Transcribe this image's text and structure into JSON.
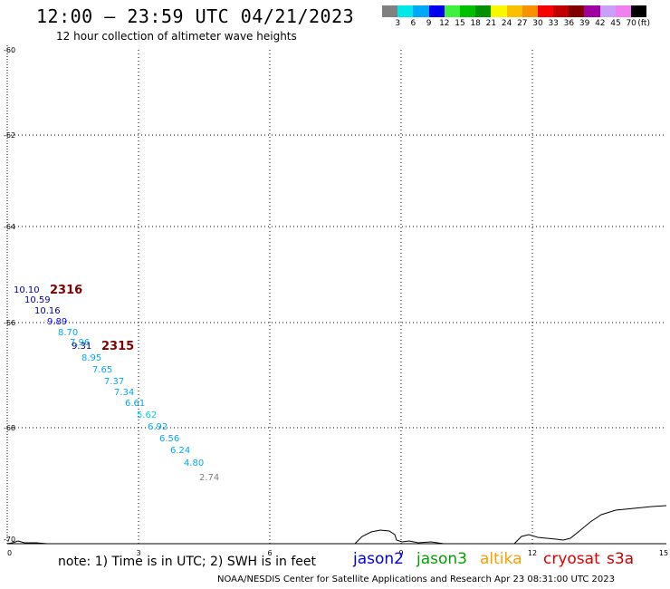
{
  "header": {
    "title": "12:00 – 23:59 UTC 04/21/2023",
    "subtitle": "12 hour collection of altimeter wave heights"
  },
  "legend": {
    "colors": [
      "#808080",
      "#00e8e8",
      "#00a8f8",
      "#0000f0",
      "#40f040",
      "#00c000",
      "#009000",
      "#f8f800",
      "#f8c000",
      "#f89000",
      "#f80000",
      "#c00000",
      "#800000",
      "#a000a0",
      "#c8a0f8",
      "#f080f0",
      "#000000"
    ],
    "labels": [
      "3",
      "6",
      "9",
      "12",
      "15",
      "18",
      "21",
      "24",
      "27",
      "30",
      "33",
      "36",
      "39",
      "42",
      "45",
      "70"
    ],
    "unit": "(ft)"
  },
  "map": {
    "y_labels": [
      "-60",
      "-62",
      "-64",
      "-66",
      "-68",
      "-70"
    ],
    "x_labels": [
      "0",
      "3",
      "6",
      "9",
      "12",
      "15"
    ],
    "pass_labels": [
      {
        "text": "2316",
        "color": "#800000"
      },
      {
        "text": "2315",
        "color": "#800000"
      }
    ],
    "readings": [
      {
        "text": "10.10",
        "color": "#0000a0"
      },
      {
        "text": "10.59",
        "color": "#0000a0"
      },
      {
        "text": "10.16",
        "color": "#0000a0"
      },
      {
        "text": "9.89",
        "color": "#0000f0"
      },
      {
        "text": "8.70",
        "color": "#00a8f8"
      },
      {
        "text": "7.96",
        "color": "#00a8f8"
      },
      {
        "text": "9.31",
        "color": "#000080"
      },
      {
        "text": "8.95",
        "color": "#00a8f8"
      },
      {
        "text": "7.65",
        "color": "#00a8f8"
      },
      {
        "text": "7.37",
        "color": "#00a8f8"
      },
      {
        "text": "7.34",
        "color": "#00a8f8"
      },
      {
        "text": "6.61",
        "color": "#00a8f8"
      },
      {
        "text": "5.62",
        "color": "#00d0e8"
      },
      {
        "text": "6.92",
        "color": "#00a8f8"
      },
      {
        "text": "6.56",
        "color": "#00a8f8"
      },
      {
        "text": "6.24",
        "color": "#00a8f8"
      },
      {
        "text": "4.80",
        "color": "#00a8f8"
      },
      {
        "text": "2.74",
        "color": "#808080"
      }
    ]
  },
  "footer": {
    "note": "note: 1) Time is in UTC; 2) SWH is in feet",
    "satellites": [
      {
        "name": "jason2",
        "color": "#0000e0"
      },
      {
        "name": "jason3",
        "color": "#00a000"
      },
      {
        "name": "altika",
        "color": "#f8a000"
      },
      {
        "name": "cryosat",
        "color": "#e00000"
      },
      {
        "name": "s3a",
        "color": "#c00000"
      }
    ],
    "credit": "NOAA/NESDIS Center for Satellite Applications and Research   Apr 23 08:31:00 UTC 2023"
  }
}
